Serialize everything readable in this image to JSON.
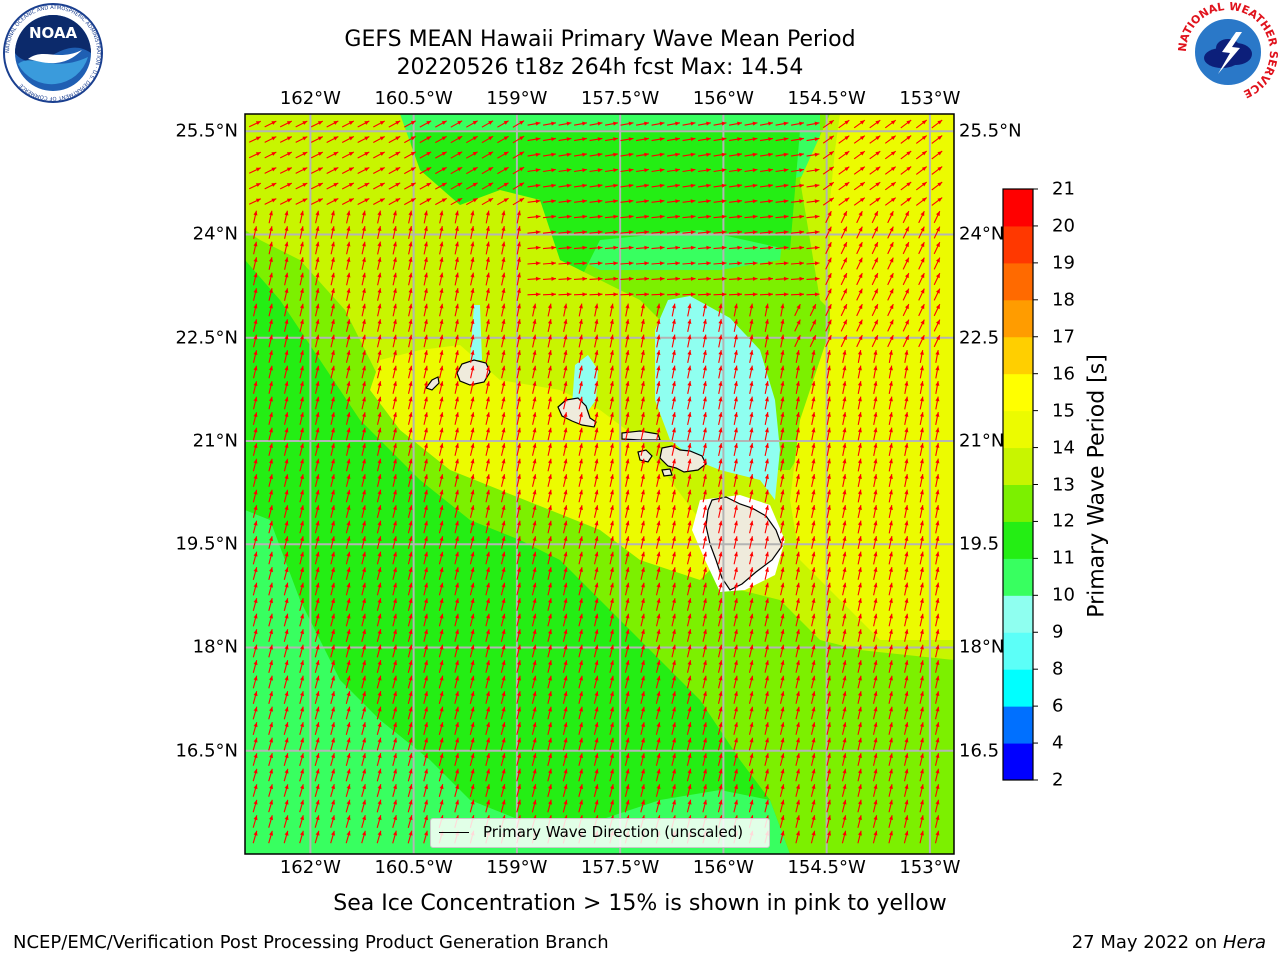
{
  "title": {
    "line1": "GEFS MEAN Hawaii Primary Wave Mean Period",
    "line2": "20220526 t18z 264h fcst   Max: 14.54"
  },
  "logos": {
    "left": {
      "text": "NOAA",
      "icon": "noaa-logo",
      "ring_text": "NATIONAL OCEANIC AND ATMOSPHERIC ADMINISTRATION · U.S. DEPARTMENT OF COMMERCE"
    },
    "right": {
      "icon": "nws-logo",
      "ring_text": "NATIONAL WEATHER SERVICE"
    }
  },
  "map": {
    "lon_ticks_top": [
      "162°W",
      "160.5°W",
      "159°W",
      "157.5°W",
      "156°W",
      "154.5°W",
      "153°W"
    ],
    "lon_ticks_bottom": [
      "162°W",
      "160.5°W",
      "159°W",
      "157.5°W",
      "156°W",
      "154.5°W",
      "153°W"
    ],
    "lat_ticks_left": [
      "25.5°N",
      "24°N",
      "22.5°N",
      "21°N",
      "19.5°N",
      "18°N",
      "16.5°N"
    ],
    "lat_ticks_right": [
      "25.5°N",
      "24°N",
      "22.5",
      "21°N",
      "19.5",
      "18°N",
      "16.5"
    ],
    "lon_values": [
      -162,
      -160.5,
      -159,
      -157.5,
      -156,
      -154.5,
      -153
    ],
    "lat_values": [
      25.5,
      24,
      22.5,
      21,
      19.5,
      18,
      16.5
    ],
    "lon_range": [
      -162.95,
      -152.65
    ],
    "lat_range": [
      15.0,
      25.75
    ],
    "grid": true,
    "legend": {
      "label": "Primary Wave Direction (unscaled)",
      "position": "bottom-center"
    },
    "arrow_color": "#ff0000",
    "land_color": "#efebdc",
    "gridline_color": "#b4b4b4"
  },
  "colorbar": {
    "label": "Primary Wave Period [s]",
    "levels": [
      2,
      4,
      6,
      8,
      9,
      10,
      11,
      12,
      13,
      14,
      15,
      16,
      17,
      18,
      19,
      20,
      21
    ],
    "tick_labels": [
      "2",
      "4",
      "6",
      "8",
      "9",
      "10",
      "11",
      "12",
      "13",
      "14",
      "15",
      "16",
      "17",
      "18",
      "19",
      "20",
      "21"
    ],
    "colors": [
      "#0000ff",
      "#0070ff",
      "#00ffff",
      "#5cfff8",
      "#8ffff0",
      "#38ff60",
      "#24ee14",
      "#7cf000",
      "#c8f500",
      "#ecfb00",
      "#ffff00",
      "#ffcf00",
      "#ff9c00",
      "#ff6a00",
      "#ff3800",
      "#ff0000"
    ]
  },
  "chart_data": {
    "type": "heatmap",
    "title": "GEFS MEAN Hawaii Primary Wave Mean Period",
    "subtitle": "20220526 t18z 264h fcst   Max: 14.54",
    "variable": "Primary Wave Period [s]",
    "max_value": 14.54,
    "xlabel": "",
    "ylabel": "",
    "x_ticks": [
      "162°W",
      "160.5°W",
      "159°W",
      "157.5°W",
      "156°W",
      "154.5°W",
      "153°W"
    ],
    "y_ticks": [
      "25.5°N",
      "24°N",
      "22.5°N",
      "21°N",
      "19.5°N",
      "18°N",
      "16.5°N"
    ],
    "xlim": [
      -162.95,
      -152.65
    ],
    "ylim": [
      15.0,
      25.75
    ],
    "regions": [
      {
        "value_range": [
          13,
          15
        ],
        "description_area": "central band around islands and east side"
      },
      {
        "value_range": [
          11,
          13
        ],
        "description_area": "north and south-west"
      },
      {
        "value_range": [
          9,
          10
        ],
        "description_area": "lee of Big Island / Maui"
      }
    ]
  },
  "footer": {
    "note": "Sea Ice Concentration > 15% is shown in pink to yellow",
    "left": "NCEP/EMC/Verification Post Processing Product Generation Branch",
    "right_prefix": "27 May 2022 on ",
    "right_host": "Hera"
  }
}
